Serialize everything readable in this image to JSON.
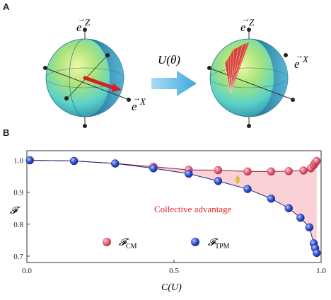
{
  "panels": {
    "a_label": "A",
    "b_label": "B"
  },
  "panel_a": {
    "z_label_left": "e",
    "z_sup_left": "Z",
    "x_label_left": "e",
    "x_sup_left": "X",
    "operator_label": "U(θ)",
    "z_label_right": "e",
    "z_sup_right": "Z",
    "x_label_right": "e",
    "x_sup_right": "X",
    "arrow_color": "#6ec3ea"
  },
  "chart_data": {
    "type": "scatter",
    "xlabel": "C(U)",
    "ylabel": "𝓕",
    "xlim": [
      0.0,
      1.0
    ],
    "ylim": [
      0.68,
      1.03
    ],
    "x_ticks": [
      "0.0",
      "0.5",
      "1.0"
    ],
    "y_ticks": [
      "0.7",
      "0.8",
      "0.9",
      "1.0"
    ],
    "annotation": "Collective advantage",
    "legend_placement": "bottom-center",
    "colors": {
      "cm": "#e0667a",
      "tpm": "#3a56d8",
      "shade": "#f8c9cf",
      "arrow": "#e0b83a",
      "annotation": "#e0202a"
    },
    "series": [
      {
        "name": "𝓕CM",
        "legend_main": "𝓕",
        "legend_sub": "CM",
        "x": [
          0.01,
          0.16,
          0.3,
          0.43,
          0.55,
          0.65,
          0.75,
          0.83,
          0.89,
          0.94,
          0.965,
          0.975,
          0.98,
          0.985
        ],
        "y": [
          1.0,
          0.998,
          0.99,
          0.98,
          0.97,
          0.969,
          0.965,
          0.965,
          0.966,
          0.968,
          0.975,
          0.985,
          0.992,
          0.998
        ]
      },
      {
        "name": "𝓕TPM",
        "legend_main": "𝓕",
        "legend_sub": "TPM",
        "x": [
          0.01,
          0.16,
          0.3,
          0.43,
          0.55,
          0.65,
          0.75,
          0.83,
          0.89,
          0.93,
          0.96,
          0.975,
          0.98,
          0.985
        ],
        "y": [
          1.0,
          0.998,
          0.99,
          0.975,
          0.958,
          0.935,
          0.91,
          0.88,
          0.85,
          0.82,
          0.79,
          0.74,
          0.725,
          0.71
        ]
      }
    ]
  }
}
